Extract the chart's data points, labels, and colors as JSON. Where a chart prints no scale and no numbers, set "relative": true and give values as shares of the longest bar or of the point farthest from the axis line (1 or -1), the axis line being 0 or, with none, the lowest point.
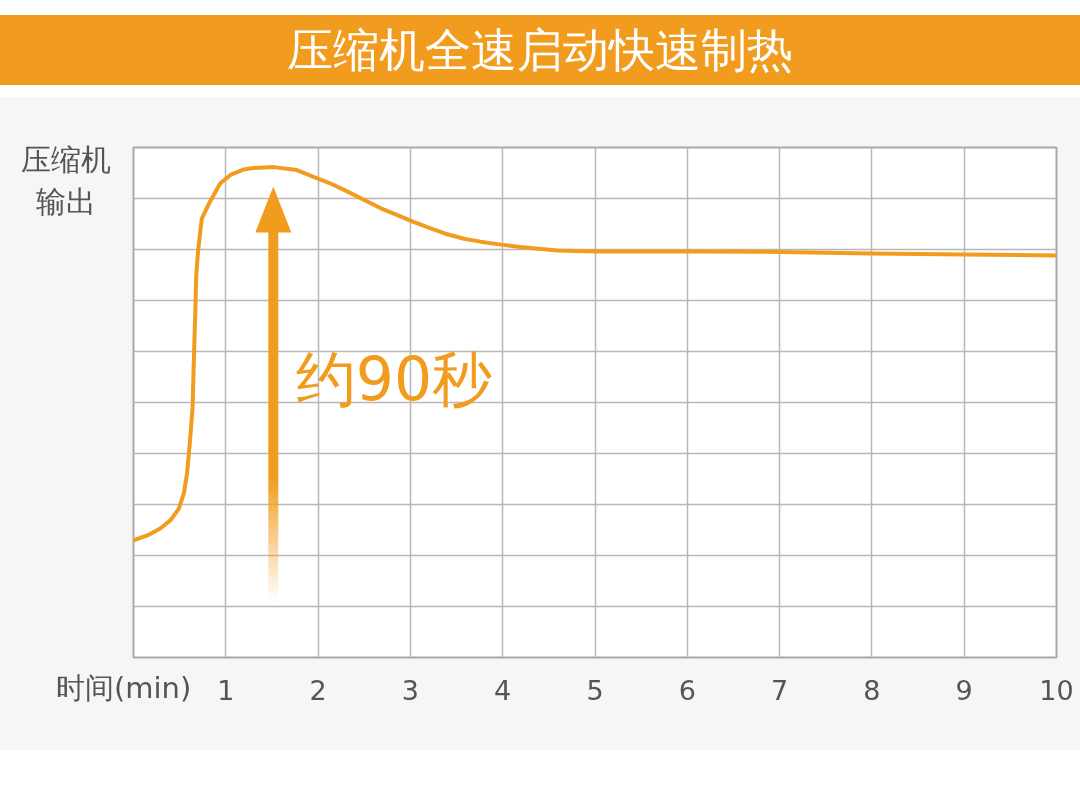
{
  "chart_data": {
    "type": "line",
    "title": "压缩机全速启动快速制热",
    "xlabel": "时间(min)",
    "ylabel": "压缩机输出",
    "relative": true,
    "x": [
      0,
      0.15,
      0.29,
      0.4,
      0.49,
      0.545,
      0.58,
      0.6,
      0.62,
      0.64,
      0.65,
      0.67,
      0.68,
      0.7,
      0.74,
      0.83,
      0.94,
      1.05,
      1.19,
      1.3,
      1.52,
      1.77,
      1.95,
      2.13,
      2.32,
      2.5,
      2.68,
      2.86,
      3.04,
      3.22,
      3.4,
      3.58,
      3.76,
      3.94,
      4.19,
      4.59,
      5.0,
      6.0,
      7.0,
      8.0,
      9.0,
      10
    ],
    "series": [
      {
        "color": "#f29c1f",
        "values": [
          0.239,
          0.249,
          0.263,
          0.28,
          0.303,
          0.334,
          0.375,
          0.416,
          0.46,
          0.51,
          0.58,
          0.71,
          0.78,
          0.83,
          0.895,
          0.93,
          0.967,
          0.984,
          0.995,
          0.998,
          1.0,
          0.994,
          0.98,
          0.967,
          0.95,
          0.933,
          0.916,
          0.902,
          0.888,
          0.875,
          0.863,
          0.854,
          0.848,
          0.843,
          0.837,
          0.83,
          0.828,
          0.828,
          0.827,
          0.824,
          0.822,
          0.82
        ]
      }
    ],
    "xlim": [
      0,
      10
    ],
    "xticks": [
      1,
      2,
      3,
      4,
      5,
      6,
      7,
      8,
      9,
      10
    ],
    "grid": true,
    "annotations": [
      "约90秒"
    ]
  }
}
